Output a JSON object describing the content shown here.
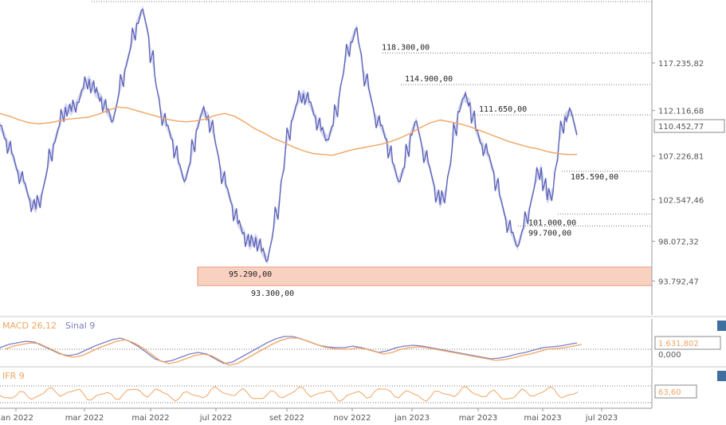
{
  "chart_data": {
    "type": "line",
    "price_axis": {
      "ticks": [
        "117.235,82",
        "112.116,68",
        "107.226,81",
        "102.547,46",
        "98.072,32",
        "93.792,47"
      ],
      "tick_values": [
        117235.82,
        112116.68,
        107226.81,
        102547.46,
        98072.32,
        93792.47
      ],
      "range": [
        91000,
        124000
      ],
      "current_label": "110.452,77",
      "current_value": 110452.77
    },
    "x_labels": [
      "jan 2022",
      "mar 2022",
      "mai 2022",
      "jul 2022",
      "set 2022",
      "nov 2022",
      "jan 2023",
      "mar 2023",
      "mai 2023",
      "jul 2023"
    ],
    "levels": [
      {
        "label": "118.300,00",
        "value": 118300
      },
      {
        "label": "114.900,00",
        "value": 114900
      },
      {
        "label": "111.650,00",
        "value": 111650
      },
      {
        "label": "105.590,00",
        "value": 105590
      },
      {
        "label": "101.000,00",
        "value": 101000
      },
      {
        "label": "99.700,00",
        "value": 99700
      },
      {
        "label": "95.290,00",
        "value": 95290
      },
      {
        "label": "93.300,00",
        "value": 93300
      }
    ],
    "support_zone": [
      93300,
      95290
    ],
    "series": [
      {
        "key": "price",
        "values": [
          110500,
          109000,
          107500,
          105500,
          104500,
          102500,
          101500,
          103000,
          106000,
          108500,
          110500,
          112500,
          112000,
          113000,
          114500,
          115500,
          114000,
          113500,
          112000,
          111000,
          114000,
          116500,
          119000,
          121500,
          123000,
          120000,
          116000,
          112000,
          110500,
          109000,
          106500,
          104500,
          106500,
          110000,
          112000,
          111500,
          109500,
          106000,
          104000,
          102000,
          100000,
          99000,
          97500,
          98500,
          97000,
          96000,
          99500,
          102500,
          108000,
          111000,
          113000,
          114000,
          113000,
          111500,
          110000,
          109000,
          110500,
          113500,
          117500,
          119500,
          121000,
          116500,
          114500,
          111500,
          110500,
          109000,
          106500,
          104500,
          106000,
          109500,
          111000,
          108000,
          106500,
          104000,
          102000,
          103500,
          108000,
          112000,
          113500,
          113000,
          110000,
          108500,
          107500,
          105500,
          103000,
          100500,
          99000,
          97500,
          99500,
          101500,
          104500,
          106000,
          102500,
          103500,
          109000,
          111500,
          112000,
          109500
        ]
      },
      {
        "key": "ma",
        "values": [
          111800,
          111500,
          111100,
          110800,
          110700,
          110800,
          111000,
          111200,
          111300,
          111400,
          111700,
          112100,
          112500,
          112400,
          112100,
          111800,
          111500,
          111200,
          111000,
          110900,
          111000,
          111200,
          111600,
          111800,
          111500,
          110900,
          110200,
          109700,
          109100,
          108700,
          108200,
          107800,
          107500,
          107400,
          107300,
          107600,
          107900,
          108100,
          108300,
          108500,
          108800,
          109200,
          109700,
          110300,
          110800,
          111100,
          110900,
          110700,
          110400,
          110000,
          109600,
          109200,
          108800,
          108500,
          108200,
          108000,
          107700,
          107500,
          107400,
          107400
        ]
      }
    ],
    "indicators": [
      {
        "label": "MACD 26,12",
        "signal_label": "Sinal 9",
        "value_label": "1.631,802",
        "value2_label": "0,000",
        "value": 1631.802,
        "line_color": "#7d7fc4",
        "signal_color": "#f0a562"
      },
      {
        "label": "IFR 9",
        "value_label": "63,60",
        "value": 63.6,
        "line_color": "#f0a562"
      }
    ],
    "colors": {
      "price": "#5d64b8",
      "price_fill": "#cdd0ec",
      "ma": "#f0a562",
      "zone": "#f8c9b6",
      "zone_edge": "#e7967b",
      "axis": "#9a9a9a",
      "grid_dots": "#777777"
    }
  }
}
